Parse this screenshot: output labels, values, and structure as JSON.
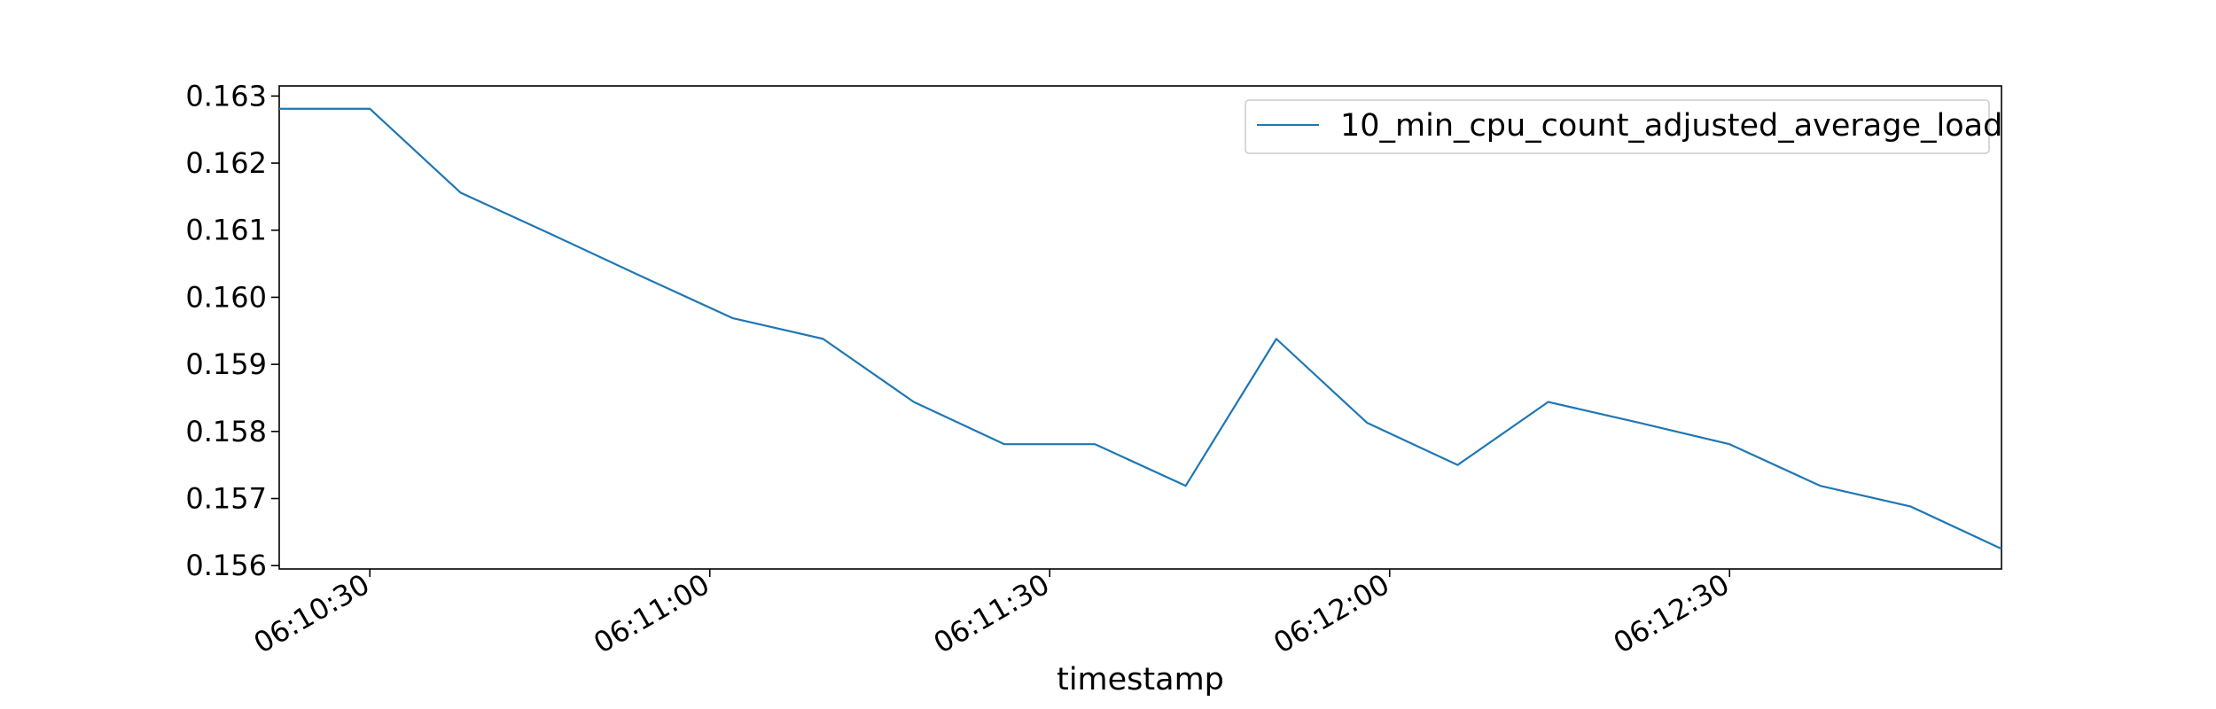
{
  "chart_data": {
    "type": "line",
    "title": "",
    "xlabel": "timestamp",
    "ylabel": "",
    "x": [
      "06:10:22",
      "06:10:30",
      "06:10:38",
      "06:10:46",
      "06:10:54",
      "06:11:02",
      "06:11:10",
      "06:11:18",
      "06:11:26",
      "06:11:34",
      "06:11:42",
      "06:11:50",
      "06:11:58",
      "06:12:06",
      "06:12:14",
      "06:12:22",
      "06:12:30",
      "06:12:38",
      "06:12:46",
      "06:12:54"
    ],
    "series": [
      {
        "name": "10_min_cpu_count_adjusted_average_load",
        "color": "#1f77b4",
        "values": [
          0.16281,
          0.16281,
          0.16156,
          0.16094,
          0.16031,
          0.15969,
          0.15938,
          0.15844,
          0.15781,
          0.15781,
          0.15719,
          0.15938,
          0.15813,
          0.1575,
          0.15844,
          0.15813,
          0.15781,
          0.15719,
          0.15688,
          0.15625
        ]
      }
    ],
    "ylim": [
      0.15595,
      0.16315
    ],
    "xlim": [
      "06:10:22",
      "06:12:54"
    ],
    "yticks": [
      "0.156",
      "0.157",
      "0.158",
      "0.159",
      "0.160",
      "0.161",
      "0.162",
      "0.163"
    ],
    "xticks": [
      "06:10:30",
      "06:11:00",
      "06:11:30",
      "06:12:00",
      "06:12:30"
    ],
    "grid": false,
    "legend_position": "top-right"
  }
}
